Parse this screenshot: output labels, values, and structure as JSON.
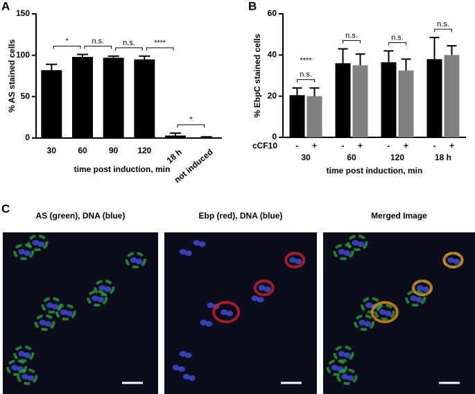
{
  "panels": {
    "a": "A",
    "b": "B",
    "c": "C"
  },
  "chart_data": [
    {
      "type": "bar",
      "ylabel": "% AS stained cells",
      "xlabel": "time post induction, min",
      "categories": [
        "30",
        "60",
        "90",
        "120",
        "18 h",
        "not induced"
      ],
      "values": [
        82,
        98,
        97,
        95,
        3,
        0.5
      ],
      "errors": [
        7,
        3,
        2,
        4,
        3,
        1
      ],
      "color": "#000000",
      "ylim": [
        0,
        150
      ],
      "yticks": [
        0,
        50,
        100,
        150
      ],
      "annotations": [
        {
          "text": "*",
          "from": "30",
          "to": "60"
        },
        {
          "text": "n.s.",
          "from": "60",
          "to": "90"
        },
        {
          "text": "n.s.",
          "from": "90",
          "to": "120"
        },
        {
          "text": "****",
          "from": "120",
          "to": "18 h"
        },
        {
          "text": "*",
          "from": "18 h",
          "to": "not induced"
        }
      ]
    },
    {
      "type": "grouped_bar",
      "ylabel": "% EbpC stained cells",
      "xlabel": "time post induction, min",
      "legend_title": "cCF10",
      "categories": [
        "30",
        "60",
        "120",
        "18 h"
      ],
      "series": [
        {
          "name": "-",
          "color": "#000000",
          "values": [
            20.5,
            36,
            36.5,
            38
          ],
          "errors": [
            3.5,
            7,
            5.5,
            10.5
          ]
        },
        {
          "name": "+",
          "color": "#7f7f7f",
          "values": [
            20,
            35,
            32.5,
            40
          ],
          "errors": [
            4,
            5.5,
            5.5,
            4.5
          ]
        }
      ],
      "ylim": [
        0,
        60
      ],
      "yticks": [
        0,
        20,
        40,
        60
      ],
      "annotations": [
        {
          "text": "n.s.",
          "group": "30"
        },
        {
          "text": "****",
          "group": "30",
          "bracket": false
        },
        {
          "text": "n.s.",
          "group": "60"
        },
        {
          "text": "n.s.",
          "group": "120"
        },
        {
          "text": "n.s.",
          "group": "18 h"
        }
      ]
    }
  ],
  "images": [
    {
      "caption": "AS (green), DNA (blue)"
    },
    {
      "caption": "Ebp (red), DNA (blue)"
    },
    {
      "caption": "Merged Image"
    }
  ]
}
